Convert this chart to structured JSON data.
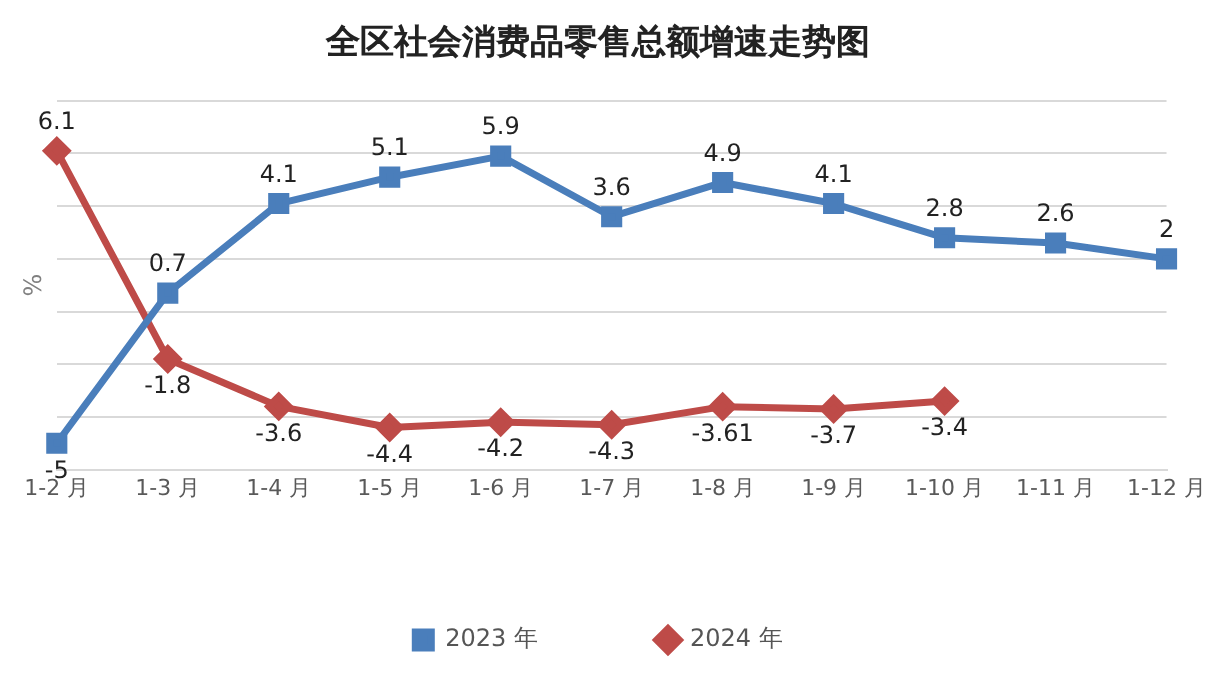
{
  "chart_data": {
    "type": "line",
    "title": "全区社会消费品零售总额增速走势图",
    "ylabel": "%",
    "categories": [
      "1-2 月",
      "1-3 月",
      "1-4 月",
      "1-5 月",
      "1-6 月",
      "1-7 月",
      "1-8 月",
      "1-9 月",
      "1-10 月",
      "1-11 月",
      "1-12 月"
    ],
    "series": [
      {
        "name": "2023 年",
        "color": "#4a7ebb",
        "marker": "square",
        "values": [
          -5,
          0.7,
          4.1,
          5.1,
          5.9,
          3.6,
          4.9,
          4.1,
          2.8,
          2.6,
          2
        ]
      },
      {
        "name": "2024 年",
        "color": "#be4b48",
        "marker": "diamond",
        "values": [
          6.1,
          -1.8,
          -3.6,
          -4.4,
          -4.2,
          -4.3,
          -3.61,
          -3.7,
          -3.4,
          null,
          null
        ]
      }
    ],
    "ylim": [
      -6,
      8
    ],
    "yticks": [
      {
        "value": -6,
        "label": null
      },
      {
        "value": -4,
        "label": null
      },
      {
        "value": -2,
        "label": null
      },
      {
        "value": 0,
        "label": null
      },
      {
        "value": 2,
        "label": null
      },
      {
        "value": 4,
        "label": null
      },
      {
        "value": 6,
        "label": null
      },
      {
        "value": 8,
        "label": null
      }
    ],
    "tick_labels": "x",
    "grid": "y",
    "legend": "bottom",
    "data_labels": true
  }
}
